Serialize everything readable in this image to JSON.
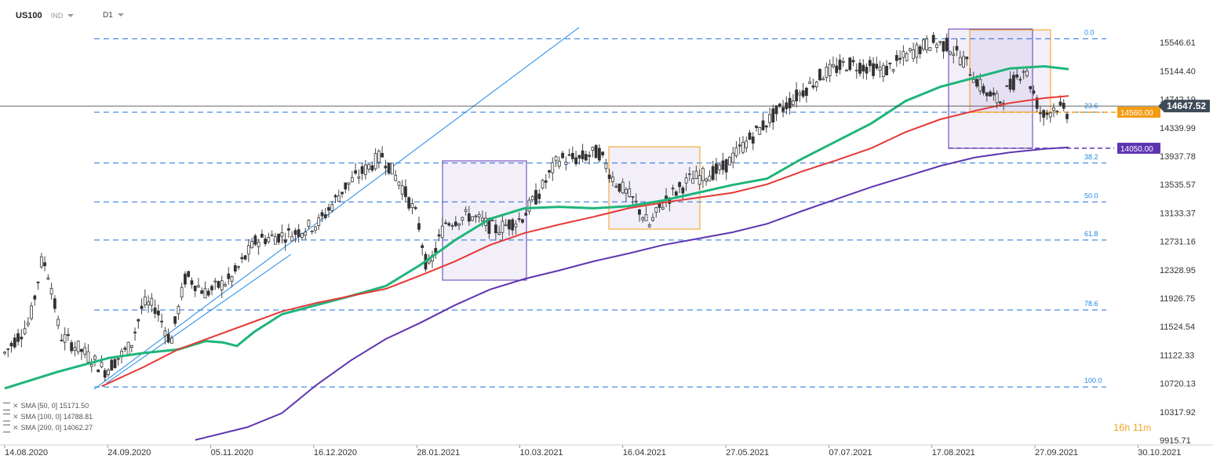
{
  "header": {
    "symbol": "US100",
    "market": "IND",
    "interval": "D1"
  },
  "legend": [
    {
      "label": "SMA [50, 0] 15171.50",
      "color": "#1fb57a"
    },
    {
      "label": "SMA [100, 0] 14788.81",
      "color": "#e53935"
    },
    {
      "label": "SMA [200, 0] 14062.27",
      "color": "#5e35b1"
    }
  ],
  "timer": {
    "hours": "16",
    "h": "h",
    "minutes": "11",
    "m": "m"
  },
  "chart_data": {
    "type": "candlestick",
    "y_ticks": [
      15546.61,
      15144.4,
      14742.19,
      14339.99,
      13937.78,
      13535.57,
      13133.37,
      12731.16,
      12328.95,
      11926.75,
      11524.54,
      11122.33,
      10720.13,
      10317.92,
      9915.71
    ],
    "x_ticks": [
      "14.08.2020",
      "24.09.2020",
      "05.11.2020",
      "16.12.2020",
      "28.01.2021",
      "10.03.2021",
      "16.04.2021",
      "27.05.2021",
      "07.07.2021",
      "17.08.2021",
      "27.09.2021",
      "30.10.2021"
    ],
    "last_price": 14647.52,
    "fib_levels": [
      {
        "label": "0.0",
        "value": 15600
      },
      {
        "label": "23.6",
        "value": 14560
      },
      {
        "label": "38.2",
        "value": 13840
      },
      {
        "label": "50.0",
        "value": 13290
      },
      {
        "label": "61.8",
        "value": 12750
      },
      {
        "label": "78.6",
        "value": 11760
      },
      {
        "label": "100.0",
        "value": 10670
      }
    ],
    "price_tags": [
      {
        "label": "14560.00",
        "value": 14560,
        "color": "#f39c12"
      },
      {
        "label": "14050.00",
        "value": 14050,
        "color": "#5e35b1"
      }
    ],
    "series": [
      {
        "name": "SMA [50, 0]",
        "color": "#1fb57a",
        "points": [
          [
            0,
            10650
          ],
          [
            15,
            10880
          ],
          [
            30,
            11080
          ],
          [
            40,
            11150
          ],
          [
            50,
            11200
          ],
          [
            58,
            11320
          ],
          [
            63,
            11300
          ],
          [
            67,
            11250
          ],
          [
            72,
            11450
          ],
          [
            80,
            11700
          ],
          [
            90,
            11830
          ],
          [
            100,
            11960
          ],
          [
            110,
            12100
          ],
          [
            120,
            12400
          ],
          [
            130,
            12750
          ],
          [
            140,
            13050
          ],
          [
            150,
            13200
          ],
          [
            160,
            13220
          ],
          [
            170,
            13200
          ],
          [
            180,
            13230
          ],
          [
            190,
            13310
          ],
          [
            200,
            13420
          ],
          [
            210,
            13530
          ],
          [
            220,
            13620
          ],
          [
            230,
            13900
          ],
          [
            240,
            14150
          ],
          [
            250,
            14400
          ],
          [
            260,
            14720
          ],
          [
            270,
            14920
          ],
          [
            280,
            15050
          ],
          [
            290,
            15180
          ],
          [
            300,
            15210
          ],
          [
            307,
            15170
          ]
        ]
      },
      {
        "name": "SMA [100, 0]",
        "color": "#e53935",
        "points": [
          [
            28,
            10680
          ],
          [
            40,
            10950
          ],
          [
            50,
            11200
          ],
          [
            60,
            11380
          ],
          [
            70,
            11560
          ],
          [
            80,
            11740
          ],
          [
            90,
            11860
          ],
          [
            100,
            11960
          ],
          [
            110,
            12060
          ],
          [
            120,
            12250
          ],
          [
            130,
            12450
          ],
          [
            140,
            12680
          ],
          [
            150,
            12850
          ],
          [
            160,
            12970
          ],
          [
            170,
            13080
          ],
          [
            180,
            13200
          ],
          [
            190,
            13280
          ],
          [
            200,
            13350
          ],
          [
            210,
            13420
          ],
          [
            220,
            13540
          ],
          [
            230,
            13720
          ],
          [
            240,
            13880
          ],
          [
            250,
            14050
          ],
          [
            260,
            14280
          ],
          [
            270,
            14460
          ],
          [
            280,
            14580
          ],
          [
            290,
            14690
          ],
          [
            300,
            14760
          ],
          [
            307,
            14790
          ]
        ]
      },
      {
        "name": "SMA [200, 0]",
        "color": "#5e35b1",
        "points": [
          [
            55,
            9920
          ],
          [
            70,
            10100
          ],
          [
            80,
            10300
          ],
          [
            90,
            10700
          ],
          [
            100,
            11050
          ],
          [
            110,
            11350
          ],
          [
            120,
            11580
          ],
          [
            130,
            11830
          ],
          [
            140,
            12050
          ],
          [
            150,
            12200
          ],
          [
            160,
            12320
          ],
          [
            170,
            12450
          ],
          [
            180,
            12560
          ],
          [
            190,
            12680
          ],
          [
            200,
            12770
          ],
          [
            210,
            12860
          ],
          [
            220,
            12980
          ],
          [
            230,
            13160
          ],
          [
            240,
            13330
          ],
          [
            250,
            13500
          ],
          [
            260,
            13650
          ],
          [
            270,
            13800
          ],
          [
            280,
            13920
          ],
          [
            290,
            13990
          ],
          [
            300,
            14040
          ],
          [
            307,
            14062
          ]
        ]
      }
    ]
  }
}
